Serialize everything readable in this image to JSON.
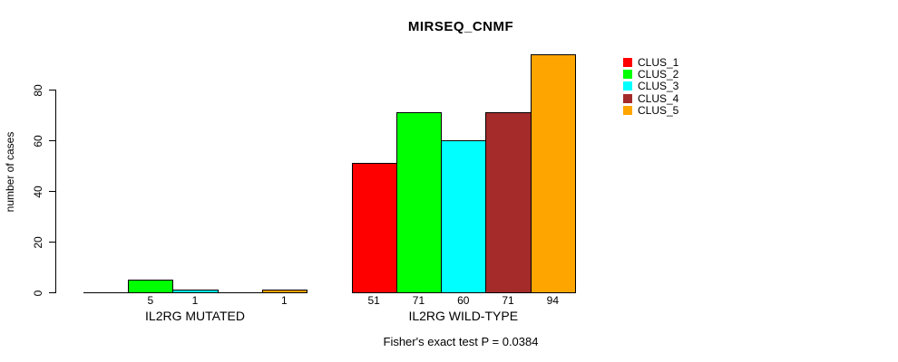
{
  "title": "MIRSEQ_CNMF",
  "subtitle": "Fisher's exact test P = 0.0384",
  "ylabel": "number of cases",
  "chart_data": {
    "type": "bar",
    "title": "MIRSEQ_CNMF",
    "ylabel": "number of cases",
    "xlabel": "",
    "annotation": "Fisher's exact test P = 0.0384",
    "categories": [
      "IL2RG MUTATED",
      "IL2RG WILD-TYPE"
    ],
    "series": [
      {
        "name": "CLUS_1",
        "color": "#FF0000",
        "values": [
          0,
          51
        ]
      },
      {
        "name": "CLUS_2",
        "color": "#00FF00",
        "values": [
          5,
          71
        ]
      },
      {
        "name": "CLUS_3",
        "color": "#00FFFF",
        "values": [
          1,
          60
        ]
      },
      {
        "name": "CLUS_4",
        "color": "#A52A2A",
        "values": [
          0,
          71
        ]
      },
      {
        "name": "CLUS_5",
        "color": "#FFA500",
        "values": [
          1,
          94
        ]
      }
    ],
    "bar_value_labels": {
      "IL2RG MUTATED": [
        "",
        "5",
        "1",
        "",
        "1"
      ],
      "IL2RG WILD-TYPE": [
        "51",
        "71",
        "60",
        "71",
        "94"
      ]
    },
    "yticks": [
      0,
      20,
      40,
      60,
      80
    ],
    "ylim": [
      0,
      94
    ],
    "grid": false,
    "legend_position": "top-right",
    "legend_entries": [
      "CLUS_1",
      "CLUS_2",
      "CLUS_3",
      "CLUS_4",
      "CLUS_5"
    ]
  }
}
